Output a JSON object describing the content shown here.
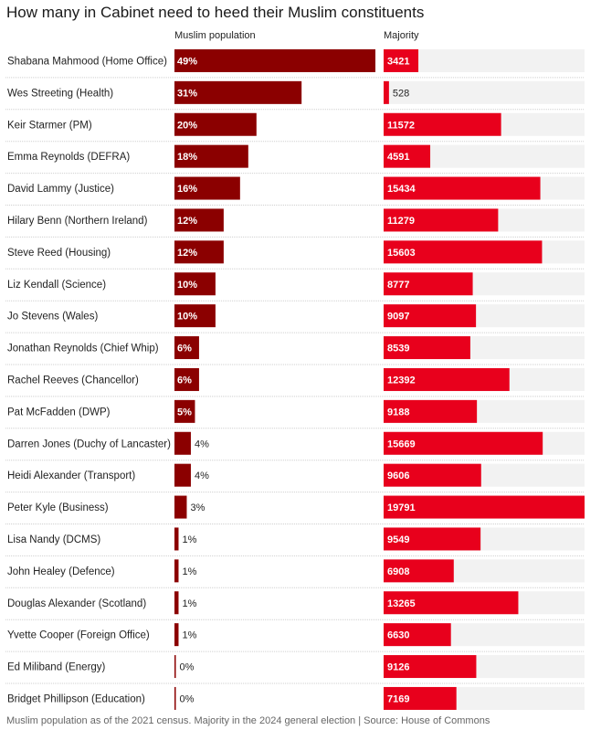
{
  "title": "How many in Cabinet need to heed their Muslim constituents",
  "footer": "Muslim population as of the 2021 census. Majority in the 2024 general election | Source: House of Commons",
  "colors": {
    "muslim_bar": "#8b0000",
    "majority_bar": "#e8001c",
    "track": "#f2f2f2",
    "divider": "#cfcfcf"
  },
  "chart_data": {
    "type": "bar",
    "title": "How many in Cabinet need to heed their Muslim constituents",
    "categories": [
      "Shabana Mahmood (Home Office)",
      "Wes Streeting (Health)",
      "Keir Starmer (PM)",
      "Emma Reynolds (DEFRA)",
      "David Lammy (Justice)",
      "Hilary Benn (Northern Ireland)",
      "Steve Reed (Housing)",
      "Liz Kendall (Science)",
      "Jo Stevens (Wales)",
      "Jonathan Reynolds (Chief Whip)",
      "Rachel Reeves (Chancellor)",
      "Pat McFadden (DWP)",
      "Darren Jones (Duchy of Lancaster)",
      "Heidi Alexander (Transport)",
      "Peter Kyle (Business)",
      "Lisa Nandy (DCMS)",
      "John Healey (Defence)",
      "Douglas Alexander (Scotland)",
      "Yvette Cooper (Foreign Office)",
      "Ed Miliband (Energy)",
      "Bridget Phillipson (Education)"
    ],
    "series": [
      {
        "name": "Muslim population",
        "unit": "%",
        "max": 49,
        "values": [
          49,
          31,
          20,
          18,
          16,
          12,
          12,
          10,
          10,
          6,
          6,
          5,
          4,
          4,
          3,
          1,
          1,
          1,
          1,
          0,
          0
        ],
        "labels": [
          "49%",
          "31%",
          "20%",
          "18%",
          "16%",
          "12%",
          "12%",
          "10%",
          "10%",
          "6%",
          "6%",
          "5%",
          "4%",
          "4%",
          "3%",
          "1%",
          "1%",
          "1%",
          "1%",
          "0%",
          "0%"
        ]
      },
      {
        "name": "Majority",
        "unit": "votes",
        "max": 19791,
        "values": [
          3421,
          528,
          11572,
          4591,
          15434,
          11279,
          15603,
          8777,
          9097,
          8539,
          12392,
          9188,
          15669,
          9606,
          19791,
          9549,
          6908,
          13265,
          6630,
          9126,
          7169
        ],
        "labels": [
          "3421",
          "528",
          "11572",
          "4591",
          "15434",
          "11279",
          "15603",
          "8777",
          "9097",
          "8539",
          "12392",
          "9188",
          "15669",
          "9606",
          "19791",
          "9549",
          "6908",
          "13265",
          "6630",
          "9126",
          "7169"
        ]
      }
    ]
  }
}
